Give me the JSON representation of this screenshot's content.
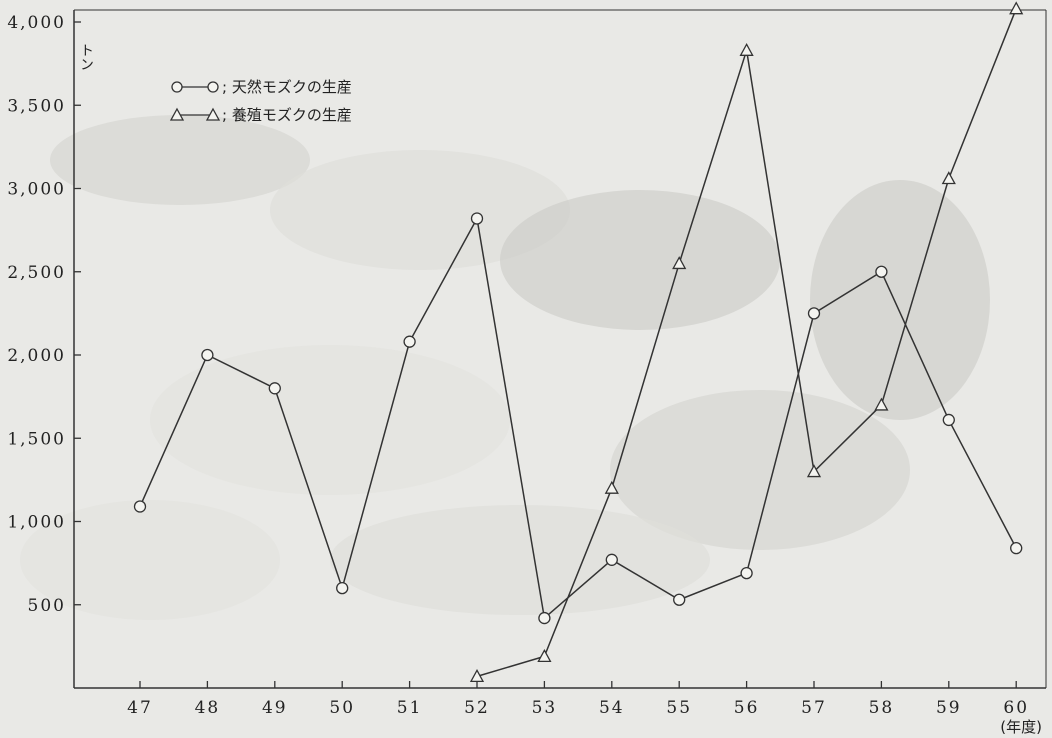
{
  "chart_data": {
    "type": "line",
    "y_unit": "トン",
    "x_unit": "(年度)",
    "categories": [
      "47",
      "48",
      "49",
      "50",
      "51",
      "52",
      "53",
      "54",
      "55",
      "56",
      "57",
      "58",
      "59",
      "60"
    ],
    "ylim": [
      0,
      4000
    ],
    "y_ticks": [
      500,
      1000,
      1500,
      2000,
      2500,
      3000,
      3500,
      4000
    ],
    "y_tick_labels": [
      "500",
      "1,000",
      "1,500",
      "2,000",
      "2,500",
      "3,000",
      "3,500",
      "4,000"
    ],
    "grid": false,
    "legend_position": "top-left",
    "series": [
      {
        "name": "天然モズクの生産",
        "legend_label": "; 天然モズクの生産",
        "marker": "circle",
        "values": [
          1090,
          2000,
          1800,
          600,
          2080,
          2820,
          420,
          770,
          530,
          690,
          2250,
          2500,
          1610,
          840
        ]
      },
      {
        "name": "養殖モズクの生産",
        "legend_label": "; 養殖モズクの生産",
        "marker": "triangle",
        "values": [
          null,
          null,
          null,
          null,
          null,
          70,
          190,
          1200,
          2550,
          3830,
          1300,
          1700,
          3060,
          4080
        ]
      }
    ]
  },
  "colors": {
    "line": "#333333",
    "background": "#e9e9e6",
    "marker_fill": "#f4f4f0"
  }
}
